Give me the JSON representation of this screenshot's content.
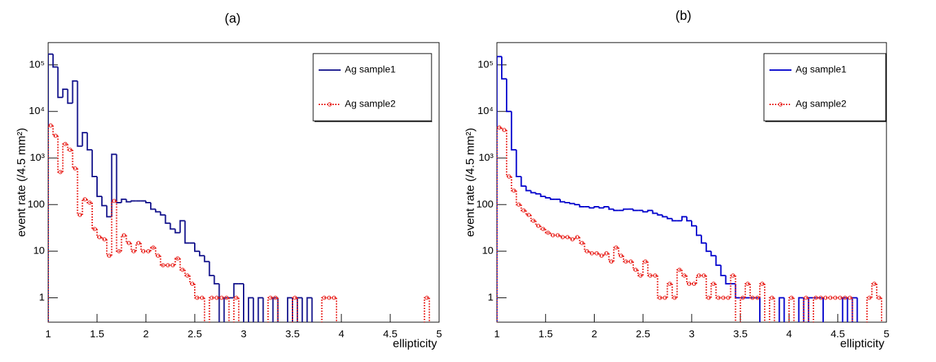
{
  "chart_data": [
    {
      "type": "histogram",
      "title": "(a)",
      "xlabel": "ellipticity",
      "ylabel": "event rate (/4.5 mm²)",
      "log_y": true,
      "legend": "upper-right",
      "xlim": [
        1,
        5
      ],
      "ylim": [
        0.3,
        300000
      ],
      "xticks": [
        1,
        1.5,
        2,
        2.5,
        3,
        3.5,
        4,
        4.5,
        5
      ],
      "yticks": [
        1,
        10,
        100,
        {
          "value": 1000,
          "label": "10³"
        },
        {
          "value": 10000,
          "label": "10⁴"
        },
        {
          "value": 100000,
          "label": "10⁵"
        }
      ],
      "bins": [
        1,
        1.05,
        1.1,
        1.15,
        1.2,
        1.25,
        1.3,
        1.35,
        1.4,
        1.45,
        1.5,
        1.55,
        1.6,
        1.65,
        1.7,
        1.75,
        1.8,
        1.85,
        1.9,
        1.95,
        2,
        2.05,
        2.1,
        2.15,
        2.2,
        2.25,
        2.3,
        2.35,
        2.4,
        2.45,
        2.5,
        2.55,
        2.6,
        2.65,
        2.7,
        2.75,
        2.8,
        2.85,
        2.9,
        2.95,
        3,
        3.05,
        3.1,
        3.15,
        3.2,
        3.25,
        3.3,
        3.35,
        3.4,
        3.45,
        3.5,
        3.55,
        3.6,
        3.65,
        3.7,
        3.75,
        3.8,
        3.85,
        3.9,
        3.95,
        4,
        4.05,
        4.1,
        4.15,
        4.2,
        4.25,
        4.3,
        4.35,
        4.4,
        4.45,
        4.5,
        4.55,
        4.6,
        4.65,
        4.7,
        4.75,
        4.8,
        4.85,
        4.9,
        4.95,
        5
      ],
      "series": [
        {
          "name": "Ag sample1",
          "color": "#14148c",
          "style": "solid",
          "marker": "none",
          "values": [
            170000,
            90000,
            20000,
            30000,
            15000,
            45000,
            1800,
            3500,
            1500,
            400,
            150,
            95,
            55,
            1200,
            110,
            130,
            115,
            120,
            120,
            120,
            110,
            80,
            70,
            60,
            40,
            30,
            25,
            45,
            15,
            15,
            10,
            8,
            6,
            3,
            2,
            0,
            1,
            1,
            2,
            2,
            0,
            1,
            0,
            1,
            0,
            0,
            1,
            0,
            0,
            1,
            0,
            1,
            0,
            1,
            0,
            0,
            0,
            0,
            0,
            0,
            0,
            0,
            0,
            0,
            0,
            0,
            0,
            0,
            0,
            0,
            0,
            0,
            0,
            0,
            0,
            0,
            0,
            0,
            0,
            0
          ]
        },
        {
          "name": "Ag sample2",
          "color": "#e8201b",
          "style": "dotted",
          "marker": "circle",
          "values": [
            5000,
            3000,
            500,
            2000,
            1500,
            600,
            60,
            130,
            110,
            30,
            20,
            18,
            8,
            120,
            10,
            22,
            15,
            10,
            15,
            10,
            10,
            12,
            8,
            5,
            5,
            5,
            7,
            4,
            3,
            2,
            1,
            1,
            0,
            1,
            1,
            1,
            1,
            0,
            1,
            0,
            0,
            0,
            0,
            0,
            0,
            1,
            1,
            0,
            0,
            0,
            1,
            0,
            0,
            0,
            0,
            0,
            1,
            1,
            1,
            0,
            0,
            0,
            0,
            0,
            0,
            0,
            0,
            0,
            0,
            0,
            0,
            0,
            0,
            0,
            0,
            0,
            0,
            1,
            0,
            0
          ]
        }
      ]
    },
    {
      "type": "histogram",
      "title": "(b)",
      "xlabel": "ellipticity",
      "ylabel": "event rate (/4.5 mm²)",
      "log_y": true,
      "legend": "upper-right",
      "xlim": [
        1,
        5
      ],
      "ylim": [
        0.3,
        300000
      ],
      "xticks": [
        1,
        1.5,
        2,
        2.5,
        3,
        3.5,
        4,
        4.5,
        5
      ],
      "yticks": [
        1,
        10,
        100,
        {
          "value": 1000,
          "label": "10³"
        },
        {
          "value": 10000,
          "label": "10⁴"
        },
        {
          "value": 100000,
          "label": "10⁵"
        }
      ],
      "bins": [
        1,
        1.05,
        1.1,
        1.15,
        1.2,
        1.25,
        1.3,
        1.35,
        1.4,
        1.45,
        1.5,
        1.55,
        1.6,
        1.65,
        1.7,
        1.75,
        1.8,
        1.85,
        1.9,
        1.95,
        2,
        2.05,
        2.1,
        2.15,
        2.2,
        2.25,
        2.3,
        2.35,
        2.4,
        2.45,
        2.5,
        2.55,
        2.6,
        2.65,
        2.7,
        2.75,
        2.8,
        2.85,
        2.9,
        2.95,
        3,
        3.05,
        3.1,
        3.15,
        3.2,
        3.25,
        3.3,
        3.35,
        3.4,
        3.45,
        3.5,
        3.55,
        3.6,
        3.65,
        3.7,
        3.75,
        3.8,
        3.85,
        3.9,
        3.95,
        4,
        4.05,
        4.1,
        4.15,
        4.2,
        4.25,
        4.3,
        4.35,
        4.4,
        4.45,
        4.5,
        4.55,
        4.6,
        4.65,
        4.7,
        4.75,
        4.8,
        4.85,
        4.9,
        4.95,
        5
      ],
      "series": [
        {
          "name": "Ag sample1",
          "color": "#0000cc",
          "style": "solid",
          "marker": "none",
          "values": [
            150000,
            50000,
            10000,
            1500,
            400,
            250,
            200,
            180,
            170,
            150,
            140,
            130,
            130,
            115,
            110,
            105,
            100,
            90,
            90,
            85,
            90,
            85,
            90,
            80,
            75,
            75,
            80,
            80,
            75,
            75,
            70,
            75,
            65,
            60,
            55,
            50,
            45,
            45,
            55,
            45,
            35,
            22,
            15,
            10,
            8,
            5,
            3,
            2,
            2,
            1,
            1,
            1,
            1,
            1,
            0,
            0,
            0,
            0,
            1,
            0,
            0,
            0,
            1,
            0,
            1,
            1,
            1,
            0,
            0,
            0,
            0,
            1,
            0,
            1,
            0,
            0,
            0,
            0,
            0,
            0
          ]
        },
        {
          "name": "Ag sample2",
          "color": "#e8201b",
          "style": "dotted",
          "marker": "circle",
          "values": [
            4500,
            4000,
            400,
            200,
            100,
            75,
            60,
            45,
            35,
            30,
            25,
            22,
            22,
            20,
            20,
            18,
            20,
            15,
            10,
            9,
            9,
            8,
            9,
            6,
            12,
            8,
            6,
            6,
            4,
            3,
            6,
            3,
            3,
            1,
            1,
            2,
            1,
            4,
            3,
            2,
            2,
            3,
            3,
            1,
            2,
            1,
            1,
            1,
            3,
            0,
            1,
            2,
            1,
            1,
            2,
            0,
            1,
            0,
            0,
            0,
            1,
            0,
            0,
            1,
            0,
            1,
            1,
            1,
            1,
            1,
            1,
            1,
            1,
            0,
            0,
            0,
            1,
            2,
            1,
            0
          ]
        }
      ]
    }
  ]
}
